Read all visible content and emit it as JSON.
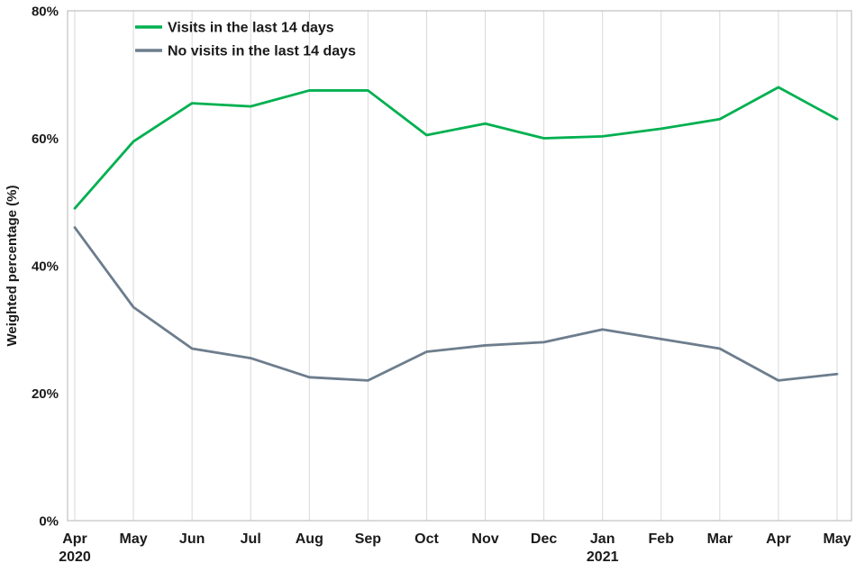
{
  "chart_data": {
    "type": "line",
    "title": "",
    "xlabel": "",
    "ylabel": "Weighted percentage (%)",
    "ylim": [
      0,
      80
    ],
    "y_ticks": [
      0,
      20,
      40,
      60,
      80
    ],
    "y_tick_labels": [
      "0%",
      "20%",
      "40%",
      "60%",
      "80%"
    ],
    "categories": [
      "Apr",
      "May",
      "Jun",
      "Jul",
      "Aug",
      "Sep",
      "Oct",
      "Nov",
      "Dec",
      "Jan",
      "Feb",
      "Mar",
      "Apr",
      "May"
    ],
    "category_sublabels": [
      "2020",
      "",
      "",
      "",
      "",
      "",
      "",
      "",
      "",
      "2021",
      "",
      "",
      "",
      ""
    ],
    "grid": "vertical",
    "legend_position": "top-left",
    "colors": {
      "grid": "#d9d9d9",
      "border": "#c0c0c0",
      "text": "#1a1a1a"
    },
    "series": [
      {
        "name": "Visits in the last 14 days",
        "color": "#00b050",
        "values": [
          49,
          59.5,
          65.5,
          65,
          67.5,
          67.5,
          60.5,
          62.3,
          60,
          60.3,
          61.5,
          63,
          68,
          63
        ]
      },
      {
        "name": "No visits in the last 14 days",
        "color": "#6d7d8d",
        "values": [
          46,
          33.5,
          27,
          25.5,
          22.5,
          22,
          26.5,
          27.5,
          28,
          30,
          28.5,
          27,
          22,
          23
        ]
      }
    ]
  }
}
